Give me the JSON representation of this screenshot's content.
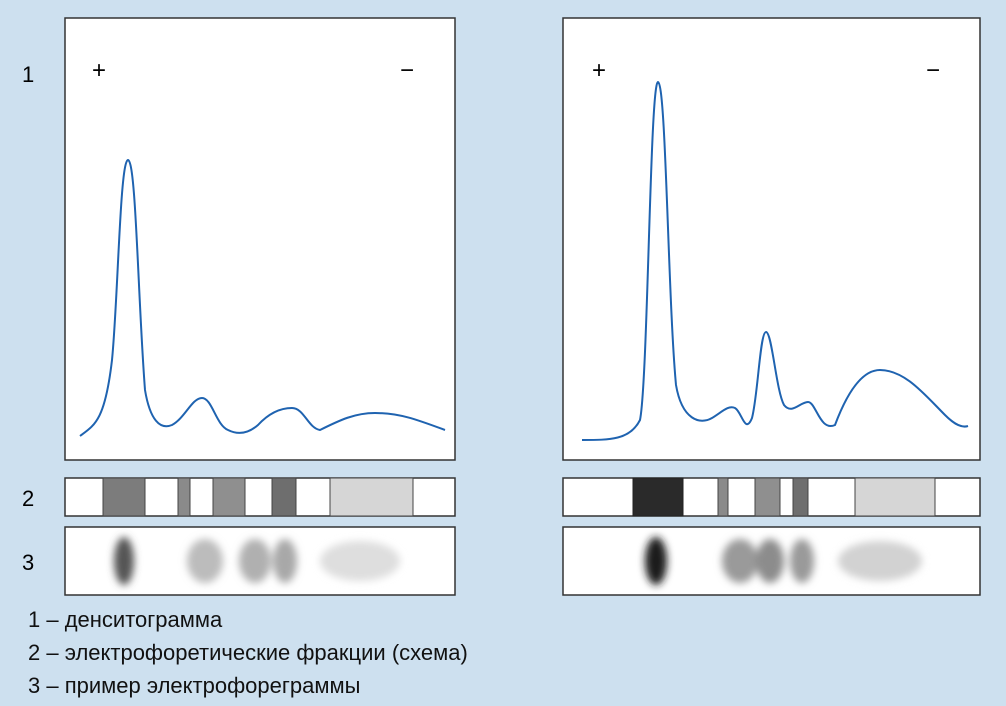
{
  "panels": [
    {
      "plus": "+",
      "minus": "−"
    },
    {
      "plus": "+",
      "minus": "−"
    }
  ],
  "rows": [
    "1",
    "2",
    "3"
  ],
  "legend": [
    "1 – денситограмма",
    "2 – электрофоретические фракции (схема)",
    "3 – пример электрофореграммы"
  ]
}
